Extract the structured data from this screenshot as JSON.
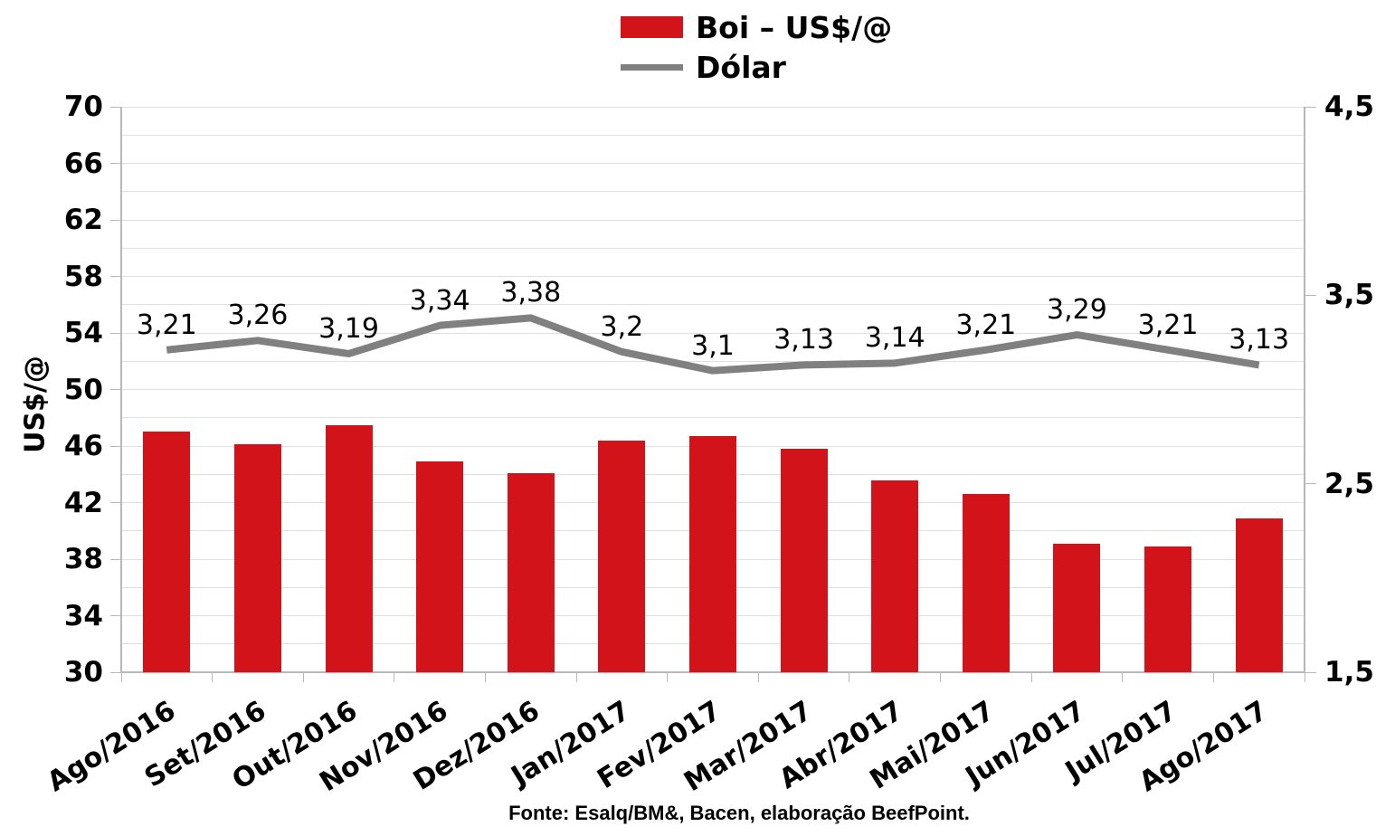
{
  "footer": {
    "text": "Fonte: Esalq/BM&, Bacen, elaboração BeefPoint."
  },
  "chart_data": {
    "type": "bar",
    "subtype": "combo-bar-line-dual-axis",
    "grid": true,
    "legend_position": "top",
    "categories": [
      "Ago/2016",
      "Set/2016",
      "Out/2016",
      "Nov/2016",
      "Dez/2016",
      "Jan/2017",
      "Fev/2017",
      "Mar/2017",
      "Abr/2017",
      "Mai/2017",
      "Jun/2017",
      "Jul/2017",
      "Ago/2017"
    ],
    "series": [
      {
        "name": "Boi – US$/@",
        "type": "bar",
        "axis": "left",
        "color": "#d2141a",
        "values": [
          47.0,
          46.1,
          47.5,
          44.9,
          44.1,
          46.4,
          46.7,
          45.8,
          43.6,
          42.6,
          39.1,
          38.9,
          40.9
        ]
      },
      {
        "name": "Dólar",
        "type": "line",
        "axis": "right",
        "color": "#808080",
        "values": [
          3.21,
          3.26,
          3.19,
          3.34,
          3.38,
          3.2,
          3.1,
          3.13,
          3.14,
          3.21,
          3.29,
          3.21,
          3.13
        ],
        "point_labels": [
          "3,21",
          "3,26",
          "3,19",
          "3,34",
          "3,38",
          "3,2",
          "3,1",
          "3,13",
          "3,14",
          "3,21",
          "3,29",
          "3,21",
          "3,13"
        ]
      }
    ],
    "left_axis": {
      "title": "US$/@",
      "range": [
        30,
        70
      ],
      "tick_step": 4,
      "minor_grid_step": 2,
      "tick_labels": [
        "70",
        "66",
        "62",
        "58",
        "54",
        "50",
        "46",
        "42",
        "38",
        "34",
        "30"
      ]
    },
    "right_axis": {
      "range": [
        1.5,
        4.5
      ],
      "tick_step": 1,
      "tick_labels": [
        "4,5",
        "3,5",
        "2,5",
        "1,5"
      ]
    }
  }
}
